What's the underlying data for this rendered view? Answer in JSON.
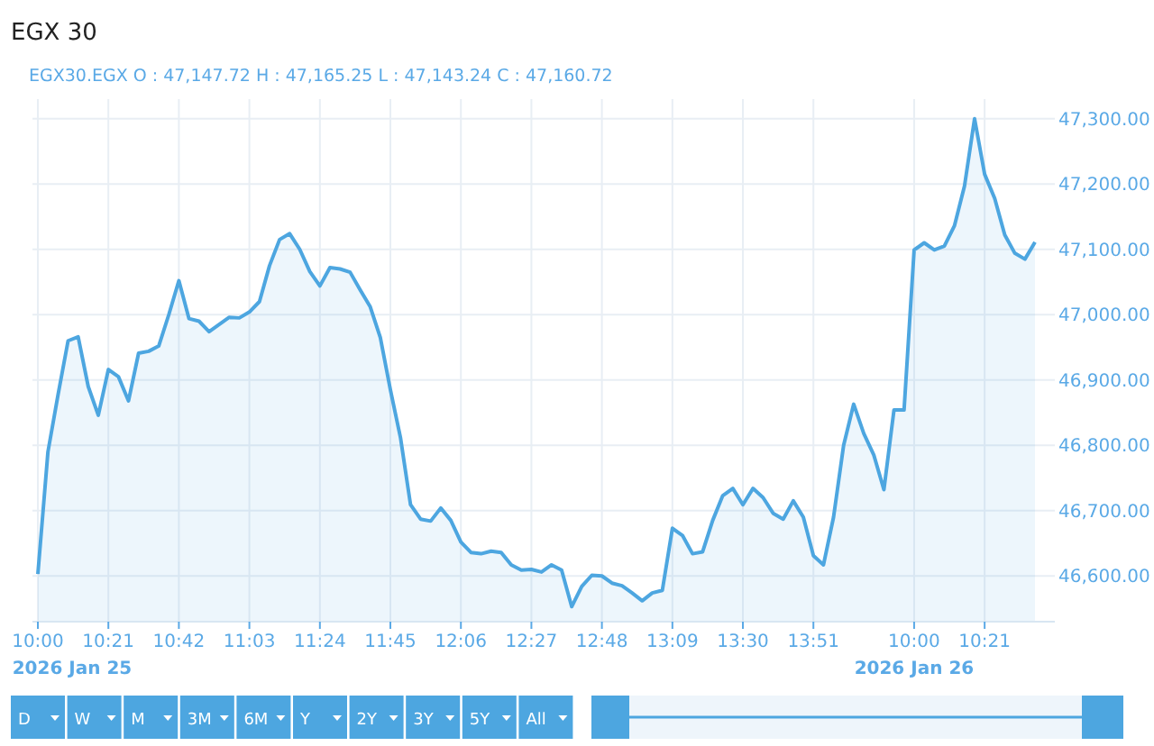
{
  "chart_data": {
    "type": "area",
    "title": "EGX 30",
    "subtitle": "EGX30.EGX  O : 47,147.72  H : 47,165.25  L : 47,143.24  C : 47,160.72",
    "categories": [
      "10:00",
      null,
      null,
      null,
      null,
      null,
      null,
      "10:21",
      null,
      null,
      null,
      null,
      null,
      null,
      "10:42",
      null,
      null,
      null,
      null,
      null,
      null,
      "11:03",
      null,
      null,
      null,
      null,
      null,
      null,
      "11:24",
      null,
      null,
      null,
      null,
      null,
      null,
      "11:45",
      null,
      null,
      null,
      null,
      null,
      null,
      "12:06",
      null,
      null,
      null,
      null,
      null,
      null,
      "12:27",
      null,
      null,
      null,
      null,
      null,
      null,
      "12:48",
      null,
      null,
      null,
      null,
      null,
      null,
      "13:09",
      null,
      null,
      null,
      null,
      null,
      null,
      "13:30",
      null,
      null,
      null,
      null,
      null,
      null,
      "13:51",
      null,
      null,
      null,
      null,
      null,
      null,
      null,
      null,
      null,
      "10:00",
      null,
      null,
      null,
      null,
      null,
      null,
      "10:21",
      null,
      null,
      null,
      null,
      null
    ],
    "ylim": [
      46530,
      47330
    ],
    "yticks": [
      {
        "value": 46600,
        "label": "46,600.00"
      },
      {
        "value": 46700,
        "label": "46,700.00"
      },
      {
        "value": 46800,
        "label": "46,800.00"
      },
      {
        "value": 46900,
        "label": "46,900.00"
      },
      {
        "value": 47000,
        "label": "47,000.00"
      },
      {
        "value": 47100,
        "label": "47,100.00"
      },
      {
        "value": 47200,
        "label": "47,200.00"
      },
      {
        "value": 47300,
        "label": "47,300.00"
      }
    ],
    "grid": true,
    "series": [
      {
        "color": "#4da6e0",
        "values": [
          46603,
          46790,
          46877,
          46960,
          46966,
          46890,
          46846,
          46916,
          46905,
          46868,
          46941,
          46944,
          46952,
          47000,
          47052,
          46994,
          46990,
          46974,
          46985,
          46996,
          46995,
          47004,
          47020,
          47075,
          47115,
          47124,
          47100,
          47066,
          47044,
          47072,
          47070,
          47065,
          47038,
          47012,
          46965,
          46885,
          46812,
          46709,
          46687,
          46684,
          46704,
          46685,
          46652,
          46636,
          46634,
          46638,
          46636,
          46617,
          46609,
          46610,
          46606,
          46617,
          46609,
          46553,
          46584,
          46601,
          46600,
          46589,
          46585,
          46574,
          46562,
          46574,
          46578,
          46673,
          46662,
          46634,
          46637,
          46685,
          46723,
          46734,
          46709,
          46734,
          46720,
          46696,
          46687,
          46715,
          46690,
          46631,
          46617,
          46690,
          46800,
          46863,
          46818,
          46785,
          46732,
          46854,
          46854,
          47099,
          47110,
          47099,
          47105,
          47136,
          47197,
          47300,
          47215,
          47178,
          47122,
          47094,
          47085,
          47111
        ]
      }
    ],
    "annotations": [
      "2026 Jan 25",
      "2026 Jan 26",
      "D",
      "W",
      "M",
      "3M",
      "6M",
      "Y",
      "2Y",
      "3Y",
      "5Y",
      "All"
    ]
  }
}
